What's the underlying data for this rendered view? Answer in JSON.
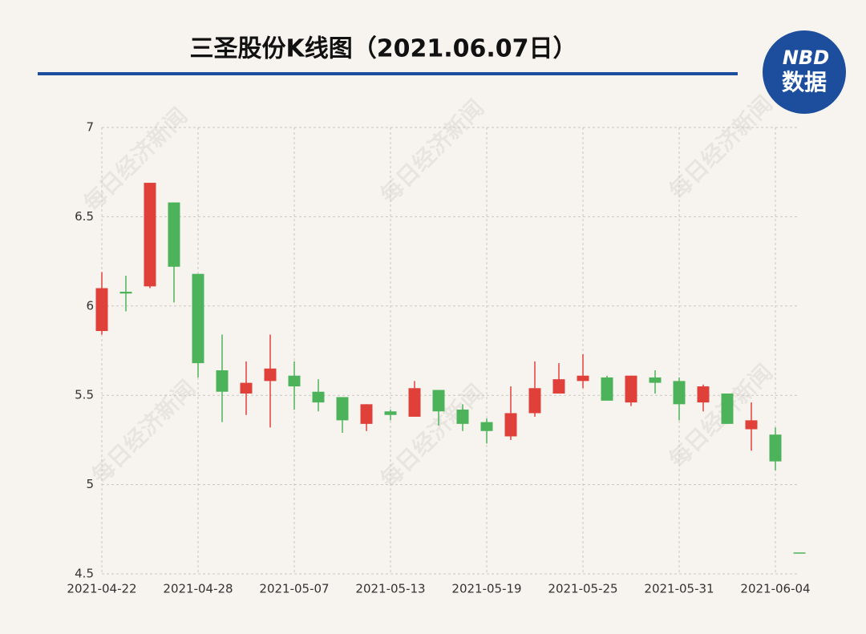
{
  "chart_data": {
    "type": "candlestick",
    "title": "三圣股份K线图（2021.06.07日）",
    "categories": [
      "2021-04-22",
      null,
      null,
      null,
      "2021-04-28",
      null,
      null,
      null,
      "2021-05-07",
      null,
      null,
      null,
      "2021-05-13",
      null,
      null,
      null,
      "2021-05-19",
      null,
      null,
      null,
      "2021-05-25",
      null,
      null,
      null,
      "2021-05-31",
      null,
      null,
      null,
      "2021-06-04",
      null
    ],
    "series": [
      {
        "up_color": "#e0403a",
        "down_color": "#4db35a",
        "open": [
          5.86,
          6.08,
          6.11,
          6.58,
          6.18,
          5.64,
          5.51,
          5.58,
          5.61,
          5.52,
          5.49,
          5.34,
          5.41,
          5.38,
          5.53,
          5.42,
          5.35,
          5.27,
          5.4,
          5.51,
          5.58,
          5.6,
          5.46,
          5.6,
          5.58,
          5.46,
          5.51,
          5.31,
          5.28,
          4.62
        ],
        "high": [
          6.19,
          6.17,
          6.69,
          6.58,
          6.18,
          5.84,
          5.69,
          5.84,
          5.69,
          5.59,
          5.49,
          5.45,
          5.42,
          5.58,
          5.53,
          5.45,
          5.37,
          5.55,
          5.69,
          5.68,
          5.73,
          5.61,
          5.61,
          5.64,
          5.6,
          5.56,
          5.51,
          5.46,
          5.32,
          4.62
        ],
        "low": [
          5.84,
          5.97,
          6.1,
          6.02,
          5.6,
          5.35,
          5.39,
          5.32,
          5.42,
          5.41,
          5.29,
          5.3,
          5.36,
          5.38,
          5.33,
          5.3,
          5.23,
          5.25,
          5.38,
          5.51,
          5.54,
          5.47,
          5.44,
          5.51,
          5.36,
          5.41,
          5.34,
          5.19,
          5.08,
          4.62
        ],
        "close": [
          6.1,
          6.07,
          6.69,
          6.22,
          5.68,
          5.52,
          5.57,
          5.65,
          5.55,
          5.46,
          5.36,
          5.45,
          5.39,
          5.54,
          5.41,
          5.34,
          5.3,
          5.4,
          5.54,
          5.59,
          5.61,
          5.47,
          5.61,
          5.57,
          5.45,
          5.55,
          5.34,
          5.36,
          5.13,
          4.62
        ]
      }
    ],
    "ylim": [
      4.5,
      7
    ],
    "yticks": [
      4.5,
      5,
      5.5,
      6,
      6.5,
      7
    ],
    "grid": true
  },
  "logo": {
    "mark": "NBD",
    "text": "数据"
  },
  "watermark": "每日经济新闻"
}
